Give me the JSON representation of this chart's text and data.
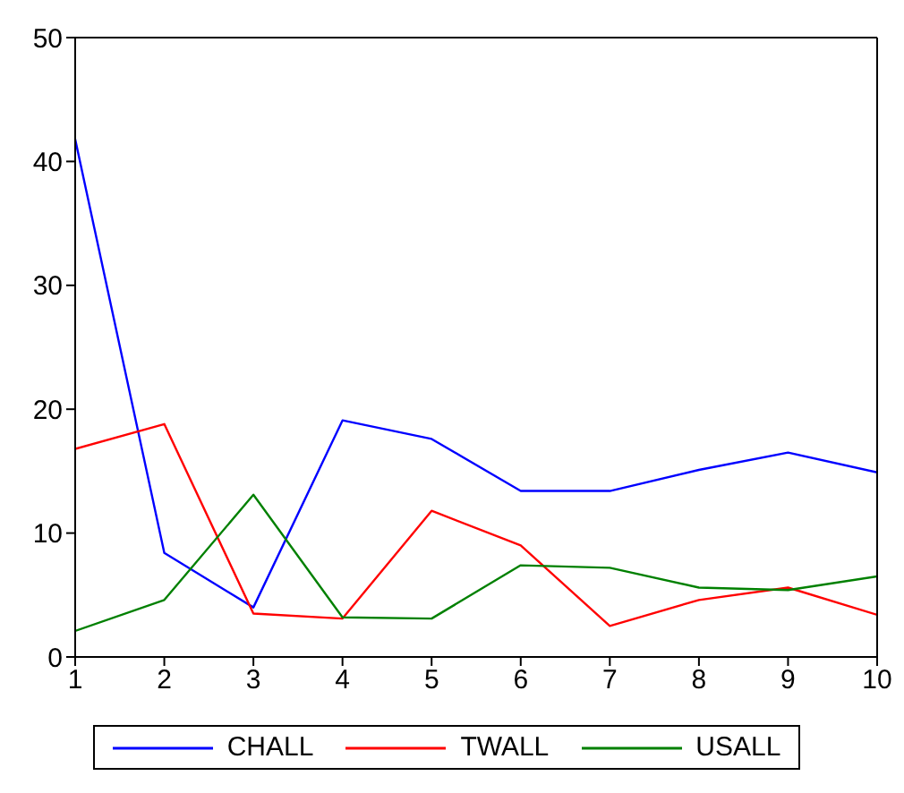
{
  "chart_data": {
    "type": "line",
    "x": [
      1,
      2,
      3,
      4,
      5,
      6,
      7,
      8,
      9,
      10
    ],
    "xlim": [
      1,
      10
    ],
    "xticks": [
      1,
      2,
      3,
      4,
      5,
      6,
      7,
      8,
      9,
      10
    ],
    "ylim": [
      0,
      50
    ],
    "yticks": [
      0,
      10,
      20,
      30,
      40,
      50
    ],
    "grid": false,
    "legend": "bottom",
    "marker": "none",
    "line_style": "solid",
    "series": [
      {
        "name": "CHALL",
        "color": "#0000ff",
        "values": [
          41.8,
          8.4,
          4.0,
          19.1,
          17.6,
          13.4,
          13.4,
          15.1,
          16.5,
          14.9
        ]
      },
      {
        "name": "TWALL",
        "color": "#ff0000",
        "values": [
          16.8,
          18.8,
          3.5,
          3.1,
          11.8,
          9.0,
          2.5,
          4.6,
          5.6,
          3.4
        ]
      },
      {
        "name": "USALL",
        "color": "#008000",
        "values": [
          2.1,
          4.6,
          13.1,
          3.2,
          3.1,
          7.4,
          7.2,
          5.6,
          5.4,
          6.5
        ]
      }
    ]
  }
}
